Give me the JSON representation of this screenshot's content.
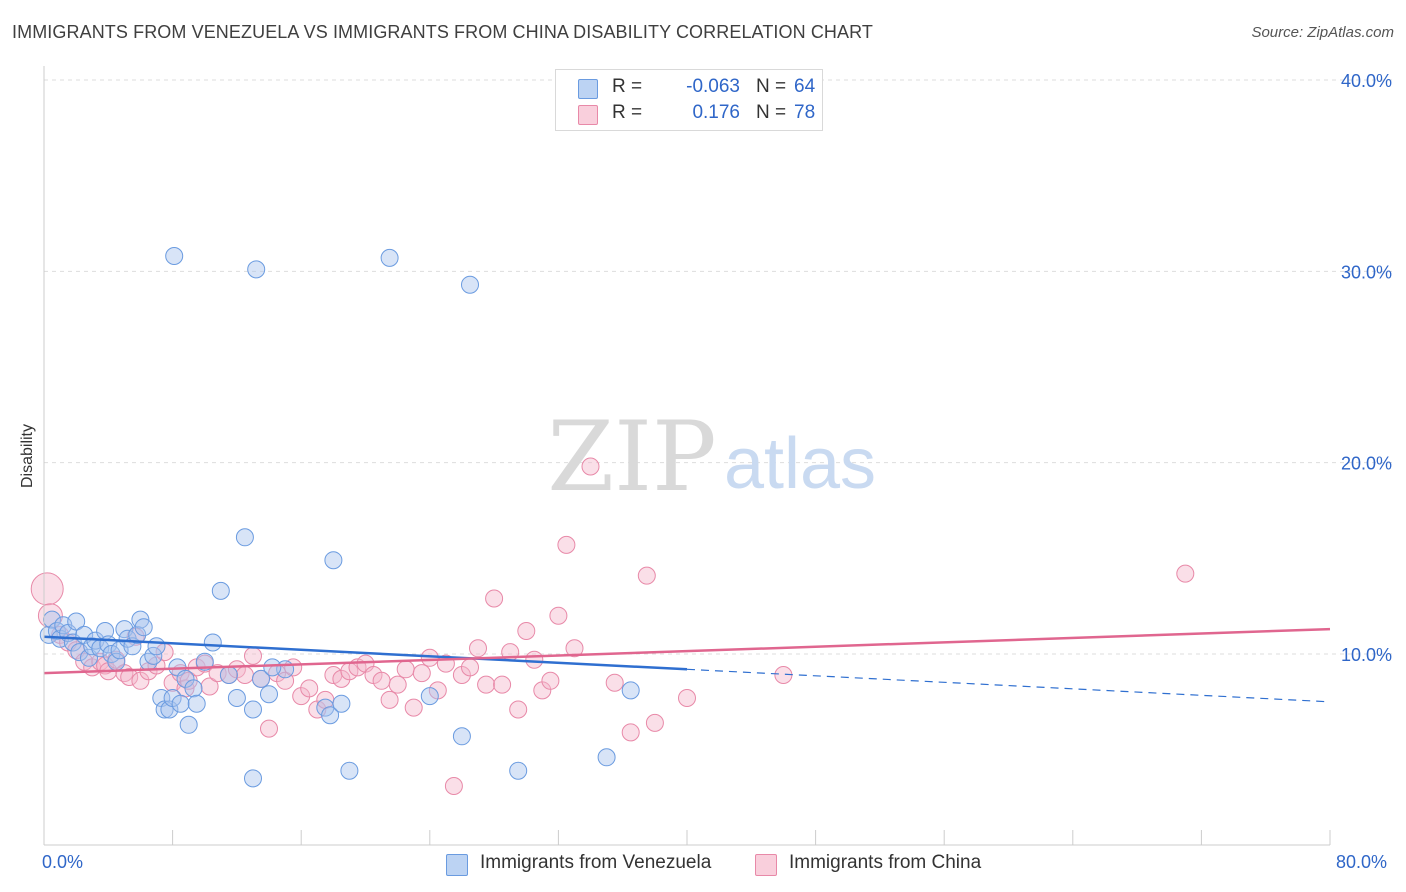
{
  "header": {
    "title": "IMMIGRANTS FROM VENEZUELA VS IMMIGRANTS FROM CHINA DISABILITY CORRELATION CHART",
    "source": "Source: ZipAtlas.com"
  },
  "watermark": {
    "zip": "ZIP",
    "atlas": "atlas"
  },
  "legend": {
    "venezuela": {
      "r_label": "R =",
      "r_value": "-0.063",
      "n_label": "N =",
      "n_value": "64",
      "color": "#a8c4ee"
    },
    "china": {
      "r_label": "R =",
      "r_value": "0.176",
      "n_label": "N =",
      "n_value": "78",
      "color": "#f5b8cb"
    }
  },
  "bottom_legend": {
    "venezuela": "Immigrants from Venezuela",
    "china": "Immigrants from China"
  },
  "axes": {
    "x_min_label": "0.0%",
    "x_max_label": "80.0%",
    "y_title": "Disability",
    "y_ticks": [
      "10.0%",
      "20.0%",
      "30.0%",
      "40.0%"
    ]
  },
  "chart_data": {
    "type": "scatter",
    "title": "IMMIGRANTS FROM VENEZUELA VS IMMIGRANTS FROM CHINA DISABILITY CORRELATION CHART",
    "xlabel": "",
    "ylabel": "Disability",
    "xlim": [
      0,
      80
    ],
    "ylim": [
      0,
      42
    ],
    "y_ticks": [
      10,
      20,
      30,
      40
    ],
    "grid": true,
    "series": [
      {
        "name": "Immigrants from Venezuela",
        "color": "#6a9be0",
        "fill": "#a8c4ee",
        "trend": {
          "x0": 0,
          "y0": 10.9,
          "x1": 40,
          "y1": 9.2,
          "dashed_to_x": 80,
          "dashed_to_y": 7.5
        },
        "points": [
          [
            0.3,
            11.0
          ],
          [
            0.5,
            11.8
          ],
          [
            0.8,
            11.2
          ],
          [
            1.0,
            10.8
          ],
          [
            1.2,
            11.5
          ],
          [
            1.5,
            11.1
          ],
          [
            1.8,
            10.6
          ],
          [
            2.0,
            11.7
          ],
          [
            2.2,
            10.1
          ],
          [
            2.5,
            11.0
          ],
          [
            2.8,
            9.8
          ],
          [
            3.0,
            10.4
          ],
          [
            3.2,
            10.7
          ],
          [
            3.5,
            10.3
          ],
          [
            3.8,
            11.2
          ],
          [
            4.0,
            10.5
          ],
          [
            4.2,
            10.0
          ],
          [
            4.5,
            9.6
          ],
          [
            4.7,
            10.2
          ],
          [
            5.0,
            11.3
          ],
          [
            5.2,
            10.8
          ],
          [
            5.5,
            10.4
          ],
          [
            5.8,
            11.0
          ],
          [
            6.0,
            11.8
          ],
          [
            6.2,
            11.4
          ],
          [
            6.5,
            9.6
          ],
          [
            6.8,
            9.9
          ],
          [
            7.0,
            10.4
          ],
          [
            7.3,
            7.7
          ],
          [
            7.5,
            7.1
          ],
          [
            7.8,
            7.1
          ],
          [
            8.0,
            7.7
          ],
          [
            8.3,
            9.3
          ],
          [
            8.5,
            7.4
          ],
          [
            8.8,
            8.7
          ],
          [
            9.0,
            6.3
          ],
          [
            9.3,
            8.2
          ],
          [
            9.5,
            7.4
          ],
          [
            10.0,
            9.6
          ],
          [
            10.5,
            10.6
          ],
          [
            11.0,
            13.3
          ],
          [
            11.5,
            8.9
          ],
          [
            12.0,
            7.7
          ],
          [
            12.5,
            16.1
          ],
          [
            13.0,
            7.1
          ],
          [
            13.5,
            8.7
          ],
          [
            14.0,
            7.9
          ],
          [
            15.0,
            9.2
          ],
          [
            8.1,
            30.8
          ],
          [
            13.0,
            3.5
          ],
          [
            13.2,
            30.1
          ],
          [
            14.2,
            9.3
          ],
          [
            17.5,
            7.2
          ],
          [
            17.8,
            6.8
          ],
          [
            18.0,
            14.9
          ],
          [
            18.5,
            7.4
          ],
          [
            19.0,
            3.9
          ],
          [
            21.5,
            30.7
          ],
          [
            24.0,
            7.8
          ],
          [
            26.0,
            5.7
          ],
          [
            26.5,
            29.3
          ],
          [
            29.5,
            3.9
          ],
          [
            35.0,
            4.6
          ],
          [
            36.5,
            8.1
          ]
        ]
      },
      {
        "name": "Immigrants from China",
        "color": "#e889a8",
        "fill": "#f5b8cb",
        "trend": {
          "x0": 0,
          "y0": 9.0,
          "x1": 80,
          "y1": 11.3
        },
        "points": [
          [
            0.2,
            13.4
          ],
          [
            0.4,
            12.0
          ],
          [
            1.0,
            11.0
          ],
          [
            1.5,
            10.6
          ],
          [
            2.0,
            10.2
          ],
          [
            2.5,
            9.6
          ],
          [
            3.0,
            9.3
          ],
          [
            3.5,
            9.6
          ],
          [
            3.8,
            9.4
          ],
          [
            4.0,
            9.1
          ],
          [
            4.5,
            9.7
          ],
          [
            5.0,
            9.0
          ],
          [
            5.3,
            8.8
          ],
          [
            5.7,
            10.9
          ],
          [
            6.0,
            8.6
          ],
          [
            6.5,
            9.1
          ],
          [
            7.0,
            9.4
          ],
          [
            7.5,
            10.1
          ],
          [
            8.0,
            8.5
          ],
          [
            8.5,
            9.0
          ],
          [
            8.8,
            8.2
          ],
          [
            9.0,
            8.6
          ],
          [
            9.5,
            9.3
          ],
          [
            10.0,
            9.5
          ],
          [
            10.3,
            8.3
          ],
          [
            10.8,
            9.0
          ],
          [
            11.5,
            8.9
          ],
          [
            12.0,
            9.2
          ],
          [
            12.5,
            8.9
          ],
          [
            13.0,
            9.9
          ],
          [
            13.5,
            8.7
          ],
          [
            14.0,
            6.1
          ],
          [
            14.5,
            9.0
          ],
          [
            15.0,
            8.6
          ],
          [
            15.5,
            9.3
          ],
          [
            16.0,
            7.8
          ],
          [
            16.5,
            8.2
          ],
          [
            17.0,
            7.1
          ],
          [
            17.5,
            7.6
          ],
          [
            18.0,
            8.9
          ],
          [
            18.5,
            8.7
          ],
          [
            19.0,
            9.1
          ],
          [
            19.5,
            9.3
          ],
          [
            20.0,
            9.5
          ],
          [
            20.5,
            8.9
          ],
          [
            21.0,
            8.6
          ],
          [
            21.5,
            7.6
          ],
          [
            22.0,
            8.4
          ],
          [
            22.5,
            9.2
          ],
          [
            23.0,
            7.2
          ],
          [
            23.5,
            9.0
          ],
          [
            24.0,
            9.8
          ],
          [
            24.5,
            8.1
          ],
          [
            25.0,
            9.5
          ],
          [
            25.5,
            3.1
          ],
          [
            26.0,
            8.9
          ],
          [
            26.5,
            9.3
          ],
          [
            27.0,
            10.3
          ],
          [
            27.5,
            8.4
          ],
          [
            28.0,
            12.9
          ],
          [
            28.5,
            8.4
          ],
          [
            29.0,
            10.1
          ],
          [
            29.5,
            7.1
          ],
          [
            30.0,
            11.2
          ],
          [
            30.5,
            9.7
          ],
          [
            31.0,
            8.1
          ],
          [
            31.5,
            8.6
          ],
          [
            32.0,
            12.0
          ],
          [
            32.5,
            15.7
          ],
          [
            33.0,
            10.3
          ],
          [
            34.0,
            19.8
          ],
          [
            35.5,
            8.5
          ],
          [
            36.5,
            5.9
          ],
          [
            37.5,
            14.1
          ],
          [
            38.0,
            6.4
          ],
          [
            40.0,
            7.7
          ],
          [
            46.0,
            8.9
          ],
          [
            71.0,
            14.2
          ]
        ]
      }
    ]
  }
}
